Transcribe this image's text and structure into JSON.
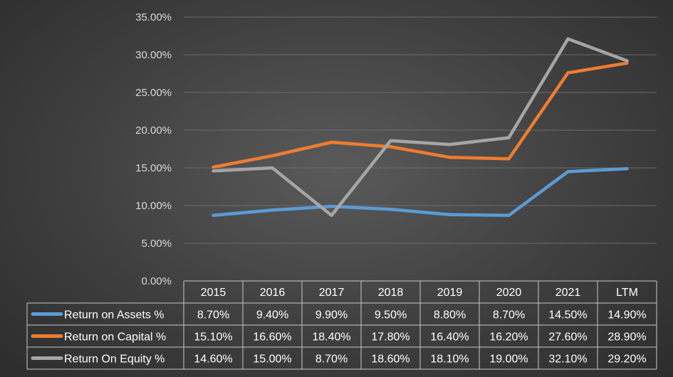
{
  "chart_data": {
    "type": "line",
    "categories": [
      "2015",
      "2016",
      "2017",
      "2018",
      "2019",
      "2020",
      "2021",
      "LTM"
    ],
    "ylim": [
      0,
      35
    ],
    "yticks": [
      "0.00%",
      "5.00%",
      "10.00%",
      "15.00%",
      "20.00%",
      "25.00%",
      "30.00%",
      "35.00%"
    ],
    "grid": true,
    "series": [
      {
        "name": "Return on Assets %",
        "color": "#5b9bd5",
        "values": [
          8.7,
          9.4,
          9.9,
          9.5,
          8.8,
          8.7,
          14.5,
          14.9
        ],
        "labels": [
          "8.70%",
          "9.40%",
          "9.90%",
          "9.50%",
          "8.80%",
          "8.70%",
          "14.50%",
          "14.90%"
        ]
      },
      {
        "name": "Return on Capital %",
        "color": "#ed7d31",
        "values": [
          15.1,
          16.6,
          18.4,
          17.8,
          16.4,
          16.2,
          27.6,
          28.9
        ],
        "labels": [
          "15.10%",
          "16.60%",
          "18.40%",
          "17.80%",
          "16.40%",
          "16.20%",
          "27.60%",
          "28.90%"
        ]
      },
      {
        "name": "Return On Equity %",
        "color": "#a5a5a5",
        "values": [
          14.6,
          15.0,
          8.7,
          18.6,
          18.1,
          19.0,
          32.1,
          29.2
        ],
        "labels": [
          "14.60%",
          "15.00%",
          "8.70%",
          "18.60%",
          "18.10%",
          "19.00%",
          "32.10%",
          "29.20%"
        ]
      }
    ]
  }
}
